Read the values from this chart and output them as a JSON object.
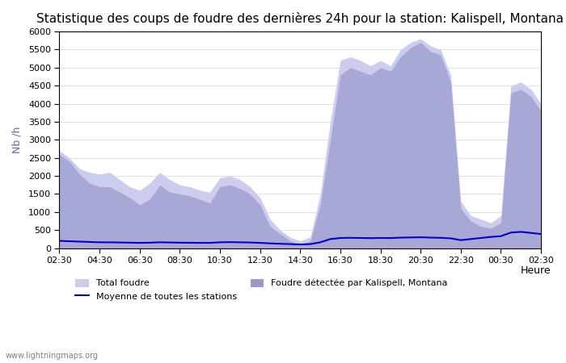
{
  "title": "Statistique des coups de foudre des dernières 24h pour la station: Kalispell, Montana",
  "xlabel": "Heure",
  "ylabel": "Nb /h",
  "ylim": [
    0,
    6000
  ],
  "yticks": [
    0,
    500,
    1000,
    1500,
    2000,
    2500,
    3000,
    3500,
    4000,
    4500,
    5000,
    5500,
    6000
  ],
  "xtick_labels": [
    "02:30",
    "04:30",
    "06:30",
    "08:30",
    "10:30",
    "12:30",
    "14:30",
    "16:30",
    "18:30",
    "20:30",
    "22:30",
    "00:30",
    "02:30"
  ],
  "color_total": "#ccccee",
  "color_kalispell": "#9999cc",
  "color_mean_line": "#0000cc",
  "watermark": "www.lightningmaps.org",
  "legend": [
    {
      "label": "Total foudre",
      "color": "#ccccee"
    },
    {
      "label": "Moyenne de toutes les stations",
      "color": "#0000cc",
      "linestyle": "-"
    },
    {
      "label": "Foudre détectée par Kalispell, Montana",
      "color": "#9999cc"
    }
  ],
  "x_total": [
    0,
    0.5,
    1,
    1.5,
    2,
    2.5,
    3,
    3.5,
    4,
    4.5,
    5,
    5.5,
    6,
    6.5,
    7,
    7.5,
    8,
    8.5,
    9,
    9.5,
    10,
    10.5,
    11,
    11.5,
    12,
    12.5,
    13,
    13.5,
    14,
    14.5,
    15,
    15.5,
    16,
    16.5,
    17,
    17.5,
    18,
    18.5,
    19,
    19.5,
    20,
    20.5,
    21,
    21.5,
    22,
    22.5,
    23,
    23.5,
    24
  ],
  "y_total": [
    2700,
    2500,
    2200,
    2100,
    2050,
    2100,
    1900,
    1700,
    1600,
    1800,
    2100,
    1900,
    1750,
    1700,
    1600,
    1550,
    1950,
    2000,
    1900,
    1700,
    1400,
    800,
    500,
    300,
    200,
    300,
    1500,
    3500,
    5200,
    5300,
    5200,
    5050,
    5200,
    5050,
    5500,
    5700,
    5800,
    5600,
    5500,
    4800,
    1300,
    900,
    800,
    700,
    900,
    4500,
    4600,
    4400,
    4000
  ],
  "y_kalispell": [
    2600,
    2400,
    2050,
    1800,
    1700,
    1700,
    1550,
    1400,
    1200,
    1350,
    1750,
    1550,
    1500,
    1450,
    1350,
    1250,
    1700,
    1750,
    1650,
    1500,
    1200,
    600,
    400,
    200,
    100,
    200,
    1200,
    3000,
    4800,
    5000,
    4900,
    4800,
    5000,
    4900,
    5300,
    5550,
    5700,
    5450,
    5350,
    4600,
    1100,
    750,
    600,
    550,
    700,
    4300,
    4400,
    4200,
    3800
  ],
  "y_mean": [
    200,
    190,
    180,
    170,
    160,
    160,
    155,
    150,
    145,
    150,
    160,
    155,
    150,
    148,
    145,
    145,
    160,
    165,
    160,
    155,
    145,
    130,
    120,
    110,
    100,
    110,
    160,
    250,
    280,
    285,
    280,
    275,
    280,
    278,
    290,
    295,
    300,
    290,
    285,
    270,
    220,
    250,
    280,
    310,
    330,
    430,
    450,
    420,
    390
  ]
}
